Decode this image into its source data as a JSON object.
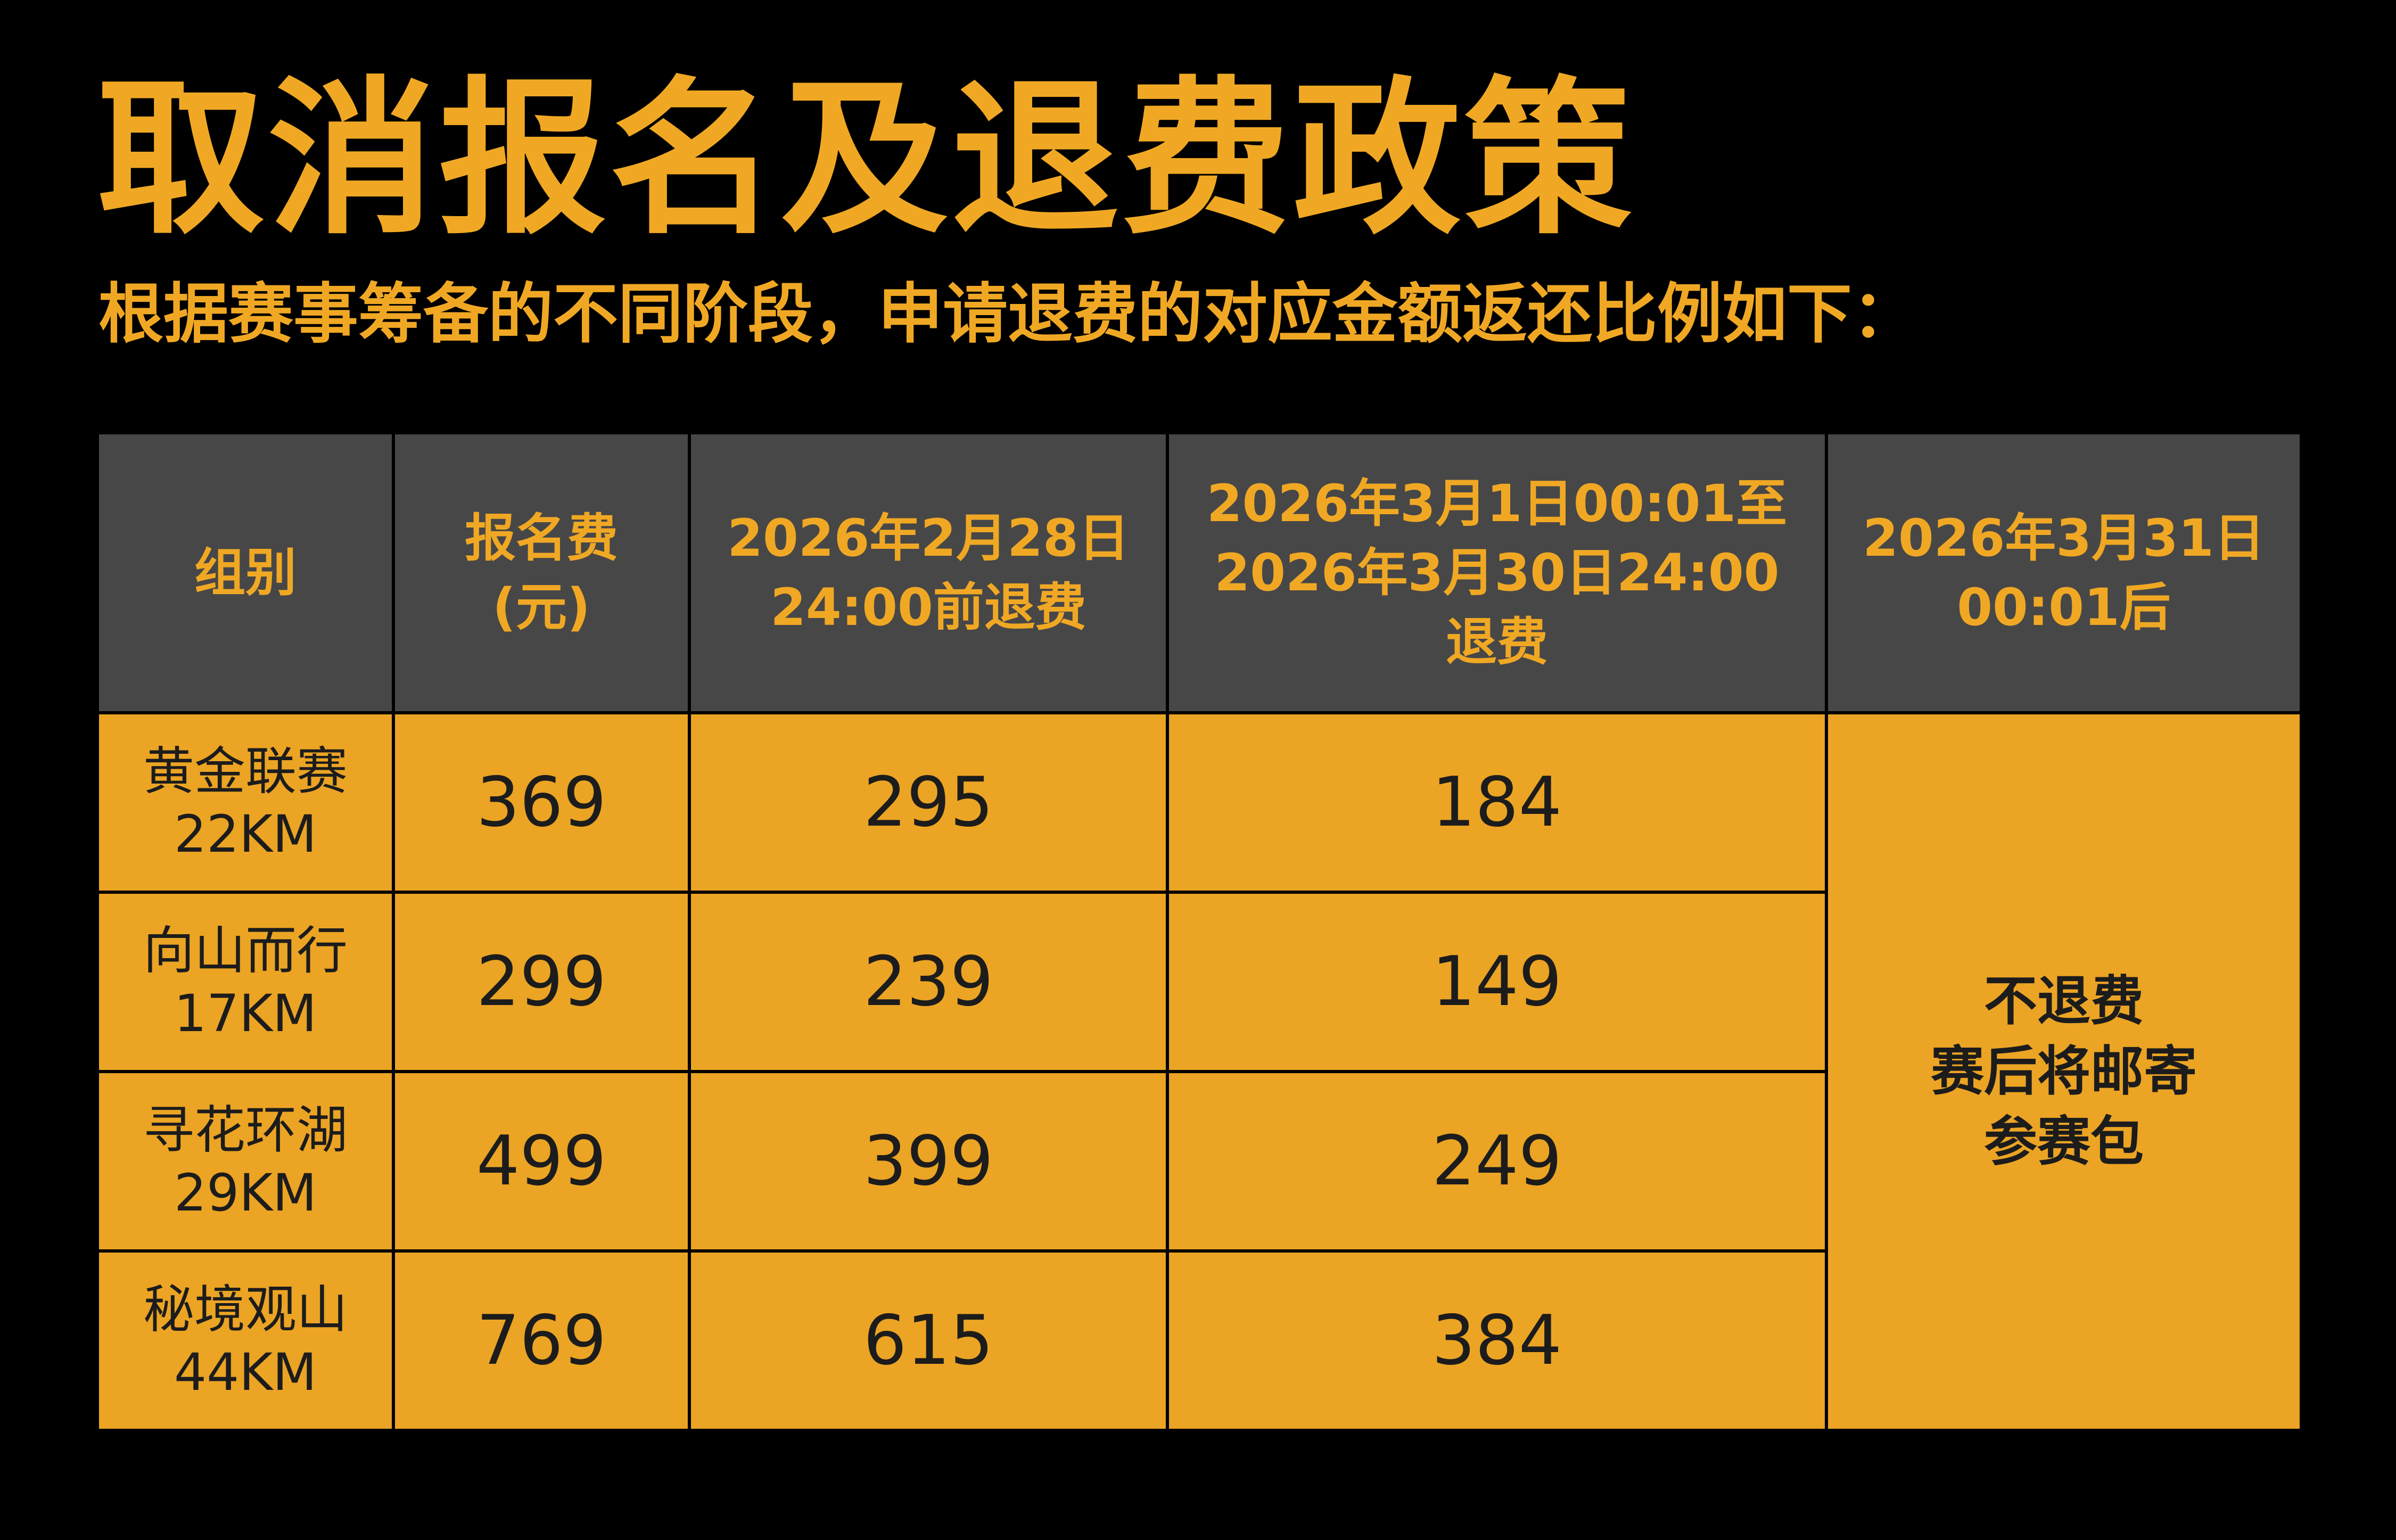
{
  "title": "取消报名及退费政策",
  "subtitle": "根据赛事筹备的不同阶段，申请退费的对应金额返还比例如下：",
  "colors": {
    "background": "#000000",
    "accent": "#F0A824",
    "header_bg": "#474747",
    "cell_bg": "#EBA424",
    "cell_text": "#1C1C1C"
  },
  "table": {
    "headers": [
      [
        "组别"
      ],
      [
        "报名费",
        "(元)"
      ],
      [
        "2026年2月28日",
        "24:00前退费"
      ],
      [
        "2026年3月1日00:01至",
        "2026年3月30日24:00",
        "退费"
      ],
      [
        "2026年3月31日",
        "00:01后"
      ]
    ],
    "rows": [
      {
        "group": [
          "黄金联赛",
          "22KM"
        ],
        "fee": "369",
        "refund_before_feb28": "295",
        "refund_mar": "184"
      },
      {
        "group": [
          "向山而行",
          "17KM"
        ],
        "fee": "299",
        "refund_before_feb28": "239",
        "refund_mar": "149"
      },
      {
        "group": [
          "寻花环湖",
          "29KM"
        ],
        "fee": "499",
        "refund_before_feb28": "399",
        "refund_mar": "249"
      },
      {
        "group": [
          "秘境观山",
          "44KM"
        ],
        "fee": "769",
        "refund_before_feb28": "615",
        "refund_mar": "384"
      }
    ],
    "after_mar31": [
      "不退费",
      "赛后将邮寄",
      "参赛包"
    ]
  }
}
